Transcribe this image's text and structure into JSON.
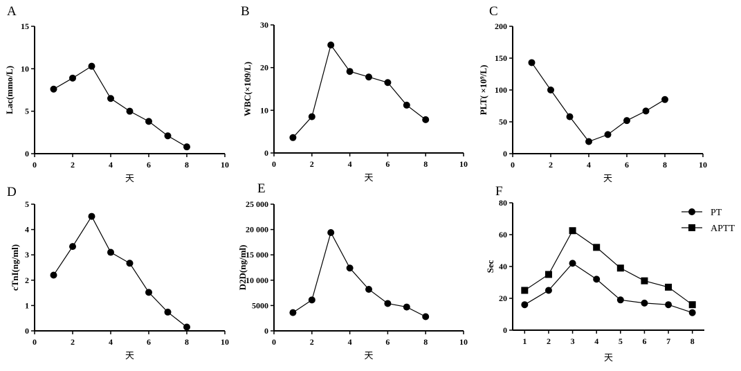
{
  "chart_data": [
    {
      "id": "A",
      "type": "line",
      "panel_label": "A",
      "xlabel": "天",
      "ylabel": "Lac(mmo/L)",
      "x": [
        1,
        2,
        3,
        4,
        5,
        6,
        7,
        8
      ],
      "xlim": [
        0,
        10
      ],
      "ylim": [
        0,
        15
      ],
      "xticks": [
        "0",
        "2",
        "4",
        "6",
        "8",
        "10"
      ],
      "yticks": [
        "0",
        "5",
        "10",
        "15"
      ],
      "series": [
        {
          "name": "Lac",
          "marker": "circle",
          "values": [
            7.6,
            8.9,
            10.3,
            6.5,
            5.0,
            3.8,
            2.1,
            0.8
          ]
        }
      ]
    },
    {
      "id": "B",
      "type": "line",
      "panel_label": "B",
      "xlabel": "天",
      "ylabel": "WBC(×109/L)",
      "x": [
        1,
        2,
        3,
        4,
        5,
        6,
        7,
        8
      ],
      "xlim": [
        0,
        10
      ],
      "ylim": [
        0,
        30
      ],
      "xticks": [
        "0",
        "2",
        "4",
        "6",
        "8",
        "10"
      ],
      "yticks": [
        "0",
        "10",
        "20",
        "30"
      ],
      "series": [
        {
          "name": "WBC",
          "marker": "circle",
          "values": [
            3.6,
            8.5,
            25.3,
            19.1,
            17.8,
            16.5,
            11.2,
            7.8
          ]
        }
      ]
    },
    {
      "id": "C",
      "type": "line",
      "panel_label": "C",
      "xlabel": "天",
      "ylabel": "PLT( ×10⁹/L)",
      "x": [
        1,
        2,
        3,
        4,
        5,
        6,
        7,
        8
      ],
      "xlim": [
        0,
        10
      ],
      "ylim": [
        0,
        200
      ],
      "xticks": [
        "0",
        "2",
        "4",
        "6",
        "8",
        "10"
      ],
      "yticks": [
        "0",
        "50",
        "100",
        "150",
        "200"
      ],
      "series": [
        {
          "name": "PLT",
          "marker": "circle",
          "values": [
            143,
            100,
            58,
            19,
            30,
            52,
            67,
            85
          ]
        }
      ]
    },
    {
      "id": "D",
      "type": "line",
      "panel_label": "D",
      "xlabel": "天",
      "ylabel": "cTnI(ng/ml)",
      "x": [
        1,
        2,
        3,
        4,
        5,
        6,
        7,
        8
      ],
      "xlim": [
        0,
        10
      ],
      "ylim": [
        0,
        5
      ],
      "xticks": [
        "0",
        "2",
        "4",
        "6",
        "8",
        "10"
      ],
      "yticks": [
        "0",
        "1",
        "2",
        "3",
        "4",
        "5"
      ],
      "series": [
        {
          "name": "cTnI",
          "marker": "circle",
          "values": [
            2.2,
            3.33,
            4.52,
            3.1,
            2.67,
            1.52,
            0.74,
            0.15
          ]
        }
      ]
    },
    {
      "id": "E",
      "type": "line",
      "panel_label": "E",
      "xlabel": "天",
      "ylabel": "D2D(ng/ml)",
      "x": [
        1,
        2,
        3,
        4,
        5,
        6,
        7,
        8
      ],
      "xlim": [
        0,
        10
      ],
      "ylim": [
        0,
        25000
      ],
      "xticks": [
        "0",
        "2",
        "4",
        "6",
        "8",
        "10"
      ],
      "yticks": [
        "0",
        "5000",
        "10 000",
        "15 000",
        "20 000",
        "25 000"
      ],
      "series": [
        {
          "name": "D2D",
          "marker": "circle",
          "values": [
            3600,
            6100,
            19400,
            12400,
            8200,
            5400,
            4700,
            2800
          ]
        }
      ]
    },
    {
      "id": "F",
      "type": "line",
      "panel_label": "F",
      "xlabel": "天",
      "ylabel": "Sec",
      "x": [
        1,
        2,
        3,
        4,
        5,
        6,
        7,
        8
      ],
      "xlim": [
        0.5,
        8.5
      ],
      "ylim": [
        0,
        80
      ],
      "xticks": [
        "1",
        "2",
        "3",
        "4",
        "5",
        "6",
        "7",
        "8"
      ],
      "yticks": [
        "0",
        "20",
        "40",
        "60",
        "80"
      ],
      "legend_position": "top-right",
      "series": [
        {
          "name": "PT",
          "marker": "circle",
          "values": [
            16,
            25,
            42,
            32,
            19,
            17,
            16,
            11
          ]
        },
        {
          "name": "APTT",
          "marker": "square",
          "values": [
            25,
            35,
            62.5,
            52,
            39,
            31,
            27,
            16
          ]
        }
      ]
    }
  ]
}
